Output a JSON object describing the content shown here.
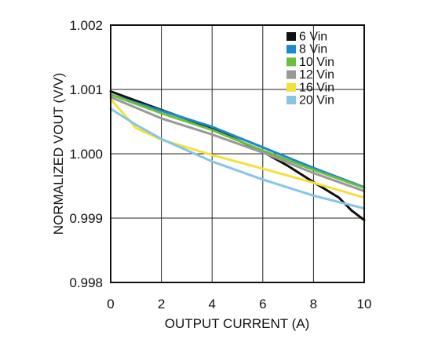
{
  "chart_data": {
    "type": "line",
    "xlabel": "OUTPUT CURRENT (A)",
    "ylabel": "NORMALIZED VOUT (V/V)",
    "xlim": [
      0,
      10
    ],
    "ylim": [
      0.998,
      1.002
    ],
    "x_ticks": [
      "0",
      "2",
      "4",
      "6",
      "8",
      "10"
    ],
    "y_ticks": [
      "0.998",
      "0.999",
      "1.000",
      "1.001",
      "1.002"
    ],
    "grid": true,
    "legend_position": "top-right",
    "series": [
      {
        "name": "6 Vin",
        "color": "#111111",
        "x": [
          0,
          2,
          4,
          6,
          7,
          8,
          9,
          9.5,
          10
        ],
        "values": [
          1.00097,
          1.00068,
          1.0004,
          1.00003,
          0.99981,
          0.99956,
          0.99932,
          0.99912,
          0.99897
        ]
      },
      {
        "name": "8 Vin",
        "color": "#1a8ac8",
        "x": [
          0,
          2,
          4,
          6,
          8,
          10
        ],
        "values": [
          1.00092,
          1.00067,
          1.00042,
          1.0001,
          0.99978,
          0.99948
        ]
      },
      {
        "name": "10 Vin",
        "color": "#6cbf3c",
        "x": [
          0,
          2,
          4,
          6,
          8,
          10
        ],
        "values": [
          1.00092,
          1.00063,
          1.00037,
          1.00005,
          0.99975,
          0.99947
        ]
      },
      {
        "name": "12 Vin",
        "color": "#999999",
        "x": [
          0,
          2,
          4,
          6,
          8,
          10
        ],
        "values": [
          1.00088,
          1.00055,
          1.0003,
          1.00002,
          0.9997,
          0.99942
        ]
      },
      {
        "name": "16 Vin",
        "color": "#f4e03a",
        "x": [
          0,
          1,
          2,
          4,
          6,
          8,
          10
        ],
        "values": [
          1.00085,
          1.0004,
          1.00022,
          0.99998,
          0.99977,
          0.99955,
          0.99932
        ]
      },
      {
        "name": "20 Vin",
        "color": "#86c5e6",
        "x": [
          0,
          1,
          2,
          4,
          6,
          8,
          10
        ],
        "values": [
          1.0007,
          1.00045,
          1.00023,
          0.99988,
          0.9996,
          0.99935,
          0.99915
        ]
      }
    ]
  }
}
